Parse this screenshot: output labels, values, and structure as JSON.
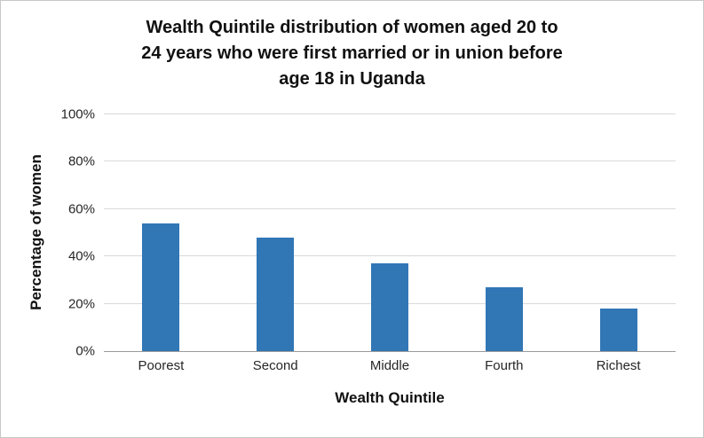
{
  "chart_data": {
    "type": "bar",
    "title": "Wealth Quintile distribution of women aged 20 to 24 years who were first married or in union before age 18 in Uganda",
    "xlabel": "Wealth Quintile",
    "ylabel": "Percentage of women",
    "categories": [
      "Poorest",
      "Second",
      "Middle",
      "Fourth",
      "Richest"
    ],
    "values": [
      54,
      48,
      37,
      27,
      18
    ],
    "unit": "%",
    "ylim": [
      0,
      100
    ],
    "yticks": [
      0,
      20,
      40,
      60,
      80,
      100
    ],
    "ytick_suffix": "%",
    "grid": true,
    "legend": false,
    "bar_color": "#3176B5"
  }
}
